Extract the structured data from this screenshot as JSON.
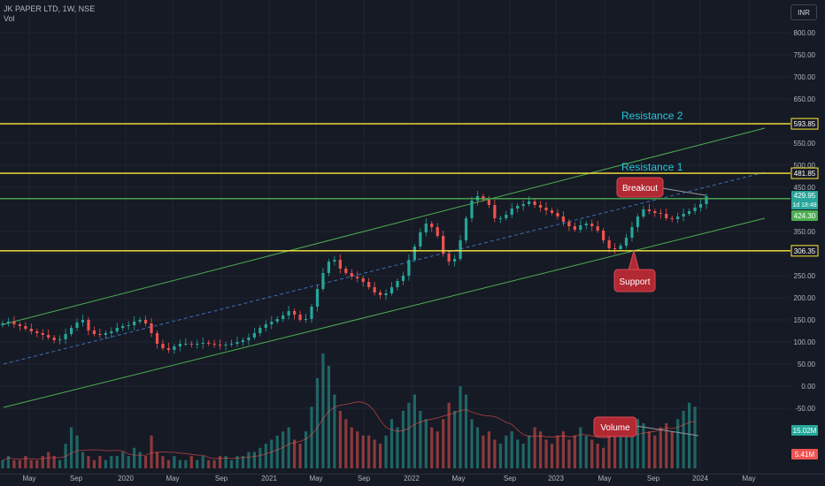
{
  "legend": {
    "symbol": "JK PAPER LTD, 1W, NSE",
    "volume_label": "Vol"
  },
  "currency_button": "INR",
  "chart_data": {
    "type": "candlestick",
    "title": "JK PAPER LTD, 1W, NSE",
    "y_ticks": [
      800,
      750,
      700,
      650,
      550,
      500,
      450,
      350,
      300,
      250,
      200,
      150,
      100,
      50,
      0,
      -50
    ],
    "y_tick_labels": [
      "800.00",
      "750.00",
      "700.00",
      "650.00",
      "550.00",
      "500.00",
      "450.00",
      "350.00",
      "300.00",
      "250.00",
      "200.00",
      "150.00",
      "100.00",
      "50.00",
      "0.00",
      "-50.00"
    ],
    "x_labels": [
      "May",
      "Sep",
      "2020",
      "May",
      "Sep",
      "2021",
      "May",
      "Sep",
      "2022",
      "May",
      "Sep",
      "2023",
      "May",
      "Sep",
      "2024",
      "May"
    ],
    "horizontal_levels": [
      {
        "label": "593.85",
        "value": 593.85,
        "color": "#ffeb3b"
      },
      {
        "label": "481.85",
        "value": 481.85,
        "color": "#ffeb3b"
      },
      {
        "label": "306.35",
        "value": 306.35,
        "color": "#ffeb3b"
      },
      {
        "label": "",
        "value": 424.3,
        "color": "#4caf50"
      }
    ],
    "price_labels": {
      "last_price": "429.95",
      "countdown": "1d 18:48",
      "prev_close": "424.30",
      "volume_up": "15.02M",
      "volume_down": "5.41M"
    },
    "annotations": {
      "resistance_2": "Resistance 2",
      "resistance_1": "Resistance 1",
      "breakout": "Breakout",
      "support": "Support",
      "volume": "Volume"
    },
    "channel": {
      "upper": [
        [
          0,
          140
        ],
        [
          1,
          584
        ]
      ],
      "lower": [
        [
          0,
          -48
        ],
        [
          1,
          380
        ]
      ],
      "mid": [
        [
          0,
          50
        ],
        [
          1,
          484
        ]
      ]
    },
    "price_path": [
      142,
      146,
      140,
      136,
      130,
      124,
      120,
      116,
      110,
      104,
      106,
      118,
      132,
      144,
      150,
      126,
      118,
      116,
      120,
      124,
      132,
      136,
      138,
      146,
      150,
      142,
      120,
      96,
      86,
      82,
      90,
      96,
      96,
      94,
      96,
      98,
      96,
      94,
      92,
      94,
      96,
      100,
      104,
      110,
      120,
      132,
      140,
      146,
      152,
      160,
      170,
      162,
      150,
      152,
      180,
      220,
      256,
      282,
      286,
      266,
      256,
      248,
      244,
      236,
      224,
      212,
      206,
      210,
      224,
      238,
      250,
      286,
      316,
      348,
      368,
      360,
      340,
      300,
      282,
      288,
      330,
      380,
      420,
      430,
      422,
      410,
      380,
      380,
      388,
      402,
      408,
      412,
      418,
      410,
      404,
      398,
      392,
      384,
      372,
      362,
      354,
      364,
      368,
      362,
      352,
      330,
      312,
      310,
      318,
      336,
      360,
      384,
      400,
      396,
      392,
      390,
      380,
      378,
      384,
      390,
      396,
      404,
      412,
      430
    ],
    "volume_path": [
      2,
      3,
      2,
      2,
      3,
      2,
      2,
      3,
      4,
      3,
      2,
      6,
      10,
      8,
      4,
      3,
      2,
      3,
      2,
      3,
      3,
      4,
      3,
      5,
      4,
      3,
      8,
      4,
      3,
      2,
      3,
      2,
      2,
      3,
      2,
      3,
      2,
      2,
      3,
      3,
      2,
      3,
      3,
      4,
      4,
      5,
      6,
      7,
      8,
      9,
      10,
      7,
      6,
      9,
      15,
      22,
      28,
      25,
      18,
      14,
      12,
      10,
      9,
      8,
      8,
      7,
      6,
      8,
      12,
      10,
      14,
      16,
      18,
      14,
      12,
      10,
      9,
      12,
      16,
      14,
      20,
      18,
      12,
      10,
      8,
      9,
      7,
      6,
      8,
      9,
      7,
      6,
      8,
      10,
      9,
      7,
      6,
      8,
      9,
      7,
      8,
      10,
      8,
      7,
      6,
      5,
      8,
      10,
      9,
      8,
      10,
      12,
      11,
      9,
      8,
      10,
      11,
      9,
      12,
      14,
      16,
      15
    ]
  }
}
